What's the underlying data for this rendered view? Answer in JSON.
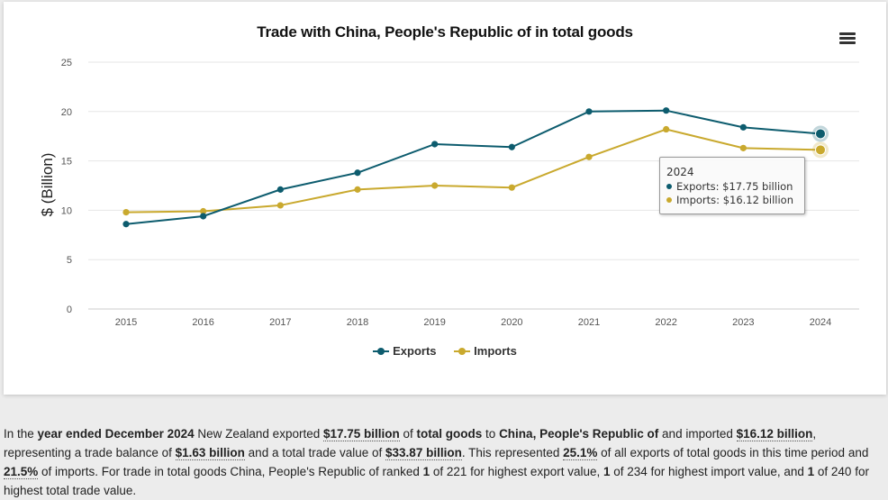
{
  "chart": {
    "title": "Trade with China, People's Republic of in total goods",
    "ylabel": "$ (Billion)",
    "menu_icon": "hamburger-menu-icon"
  },
  "chart_data": {
    "type": "line",
    "title": "Trade with China, People's Republic of in total goods",
    "xlabel": "",
    "ylabel": "$ (Billion)",
    "x": [
      "2015",
      "2016",
      "2017",
      "2018",
      "2019",
      "2020",
      "2021",
      "2022",
      "2023",
      "2024"
    ],
    "ylim": [
      0,
      25
    ],
    "yticks": [
      0,
      5,
      10,
      15,
      20,
      25
    ],
    "grid": true,
    "legend_position": "bottom-center",
    "series": [
      {
        "name": "Exports",
        "color": "#0d5c6e",
        "values": [
          8.6,
          9.4,
          12.1,
          13.8,
          16.7,
          16.4,
          20.0,
          20.1,
          18.4,
          17.75
        ]
      },
      {
        "name": "Imports",
        "color": "#c9a92e",
        "values": [
          9.8,
          9.9,
          10.5,
          12.1,
          12.5,
          12.3,
          15.4,
          18.2,
          16.3,
          16.12
        ]
      }
    ]
  },
  "tooltip": {
    "year": "2024",
    "exports_text": "Exports: $17.75 billion",
    "imports_text": "Imports: $16.12 billion"
  },
  "legend": {
    "exports_label": "Exports",
    "imports_label": "Imports"
  },
  "description": {
    "t1": "In the ",
    "year_period": "year ended December 2024",
    "t2": " New Zealand exported ",
    "exports_value": "$17.75 billion",
    "t3": " of ",
    "commodity": "total goods",
    "t4": " to ",
    "country": "China, People's Republic of",
    "t5": " and imported ",
    "imports_value": "$16.12 billion",
    "t6": ", representing a trade balance of ",
    "balance_value": "$1.63 billion",
    "t7": " and a total trade value of ",
    "total_value": "$33.87 billion",
    "t8": ". This represented ",
    "export_share": "25.1%",
    "t9": " of all exports of total goods in this time period and ",
    "import_share": "21.5%",
    "t10": " of imports. For trade in total goods China, People's Republic of ranked ",
    "rank_export": "1",
    "t11": " of 221 for highest export value, ",
    "rank_import": "1",
    "t12": " of 234 for highest import value, and ",
    "rank_total": "1",
    "t13": " of 240 for highest total trade value."
  }
}
